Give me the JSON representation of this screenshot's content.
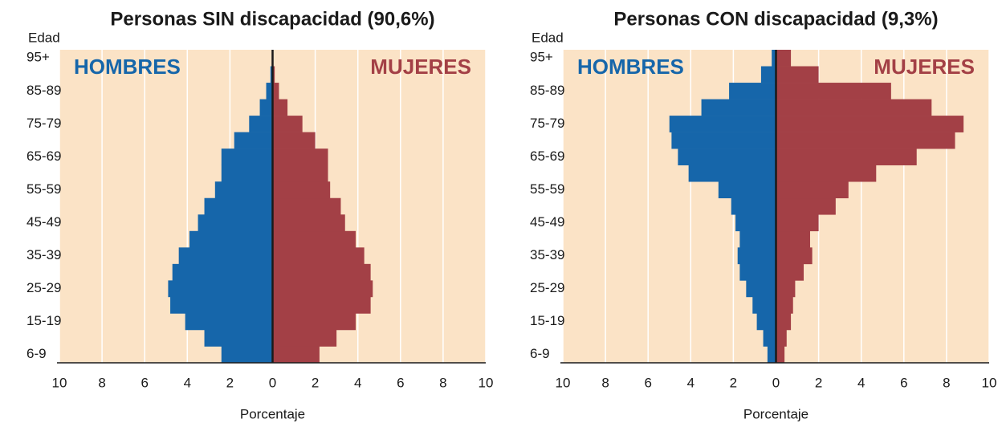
{
  "chart_data": [
    {
      "type": "bar",
      "orientation": "horizontal",
      "title": "Personas SIN discapacidad (90,6%)",
      "y_label": "Edad",
      "x_label": "Porcentaje",
      "background": "#fbe3c6",
      "grid": true,
      "categories": [
        "6-9",
        null,
        "15-19",
        null,
        "25-29",
        null,
        "35-39",
        null,
        "45-49",
        null,
        "55-59",
        null,
        "65-69",
        null,
        "75-79",
        null,
        "85-89",
        null,
        "95+"
      ],
      "series": [
        {
          "name": "HOMBRES",
          "color": "#1666aa",
          "values": [
            2.4,
            3.2,
            4.1,
            4.8,
            4.9,
            4.7,
            4.4,
            3.9,
            3.5,
            3.2,
            2.7,
            2.4,
            2.4,
            1.8,
            1.1,
            0.6,
            0.3,
            0.1,
            0.0
          ]
        },
        {
          "name": "MUJERES",
          "color": "#a34046",
          "values": [
            2.2,
            3.0,
            3.9,
            4.6,
            4.7,
            4.6,
            4.3,
            3.9,
            3.4,
            3.2,
            2.7,
            2.6,
            2.6,
            2.0,
            1.4,
            0.7,
            0.3,
            0.1,
            0.0
          ]
        }
      ],
      "xlim": [
        -10,
        10
      ],
      "xticks": [
        {
          "value": -10,
          "label": "10"
        },
        {
          "value": -8,
          "label": "8"
        },
        {
          "value": -6,
          "label": "6"
        },
        {
          "value": -4,
          "label": "4"
        },
        {
          "value": -2,
          "label": "2"
        },
        0,
        2,
        4,
        6,
        8,
        10
      ]
    },
    {
      "type": "bar",
      "orientation": "horizontal",
      "title": "Personas CON discapacidad (9,3%)",
      "y_label": "Edad",
      "x_label": "Porcentaje",
      "background": "#fbe3c6",
      "grid": true,
      "categories": [
        "6-9",
        null,
        "15-19",
        null,
        "25-29",
        null,
        "35-39",
        null,
        "45-49",
        null,
        "55-59",
        null,
        "65-69",
        null,
        "75-79",
        null,
        "85-89",
        null,
        "95+"
      ],
      "series": [
        {
          "name": "HOMBRES",
          "color": "#1666aa",
          "values": [
            0.4,
            0.6,
            0.9,
            1.1,
            1.4,
            1.7,
            1.8,
            1.7,
            1.9,
            2.1,
            2.7,
            4.1,
            4.6,
            4.9,
            5.0,
            3.5,
            2.2,
            0.7,
            0.2
          ]
        },
        {
          "name": "MUJERES",
          "color": "#a34046",
          "values": [
            0.4,
            0.5,
            0.7,
            0.8,
            0.9,
            1.3,
            1.7,
            1.6,
            2.0,
            2.8,
            3.4,
            4.7,
            6.6,
            8.4,
            8.8,
            7.3,
            5.4,
            2.0,
            0.7
          ]
        }
      ],
      "xlim": [
        -10,
        10
      ],
      "xticks": [
        {
          "value": -10,
          "label": "10"
        },
        {
          "value": -8,
          "label": "8"
        },
        {
          "value": -6,
          "label": "6"
        },
        {
          "value": -4,
          "label": "4"
        },
        {
          "value": -2,
          "label": "2"
        },
        0,
        2,
        4,
        6,
        8,
        10
      ]
    }
  ]
}
